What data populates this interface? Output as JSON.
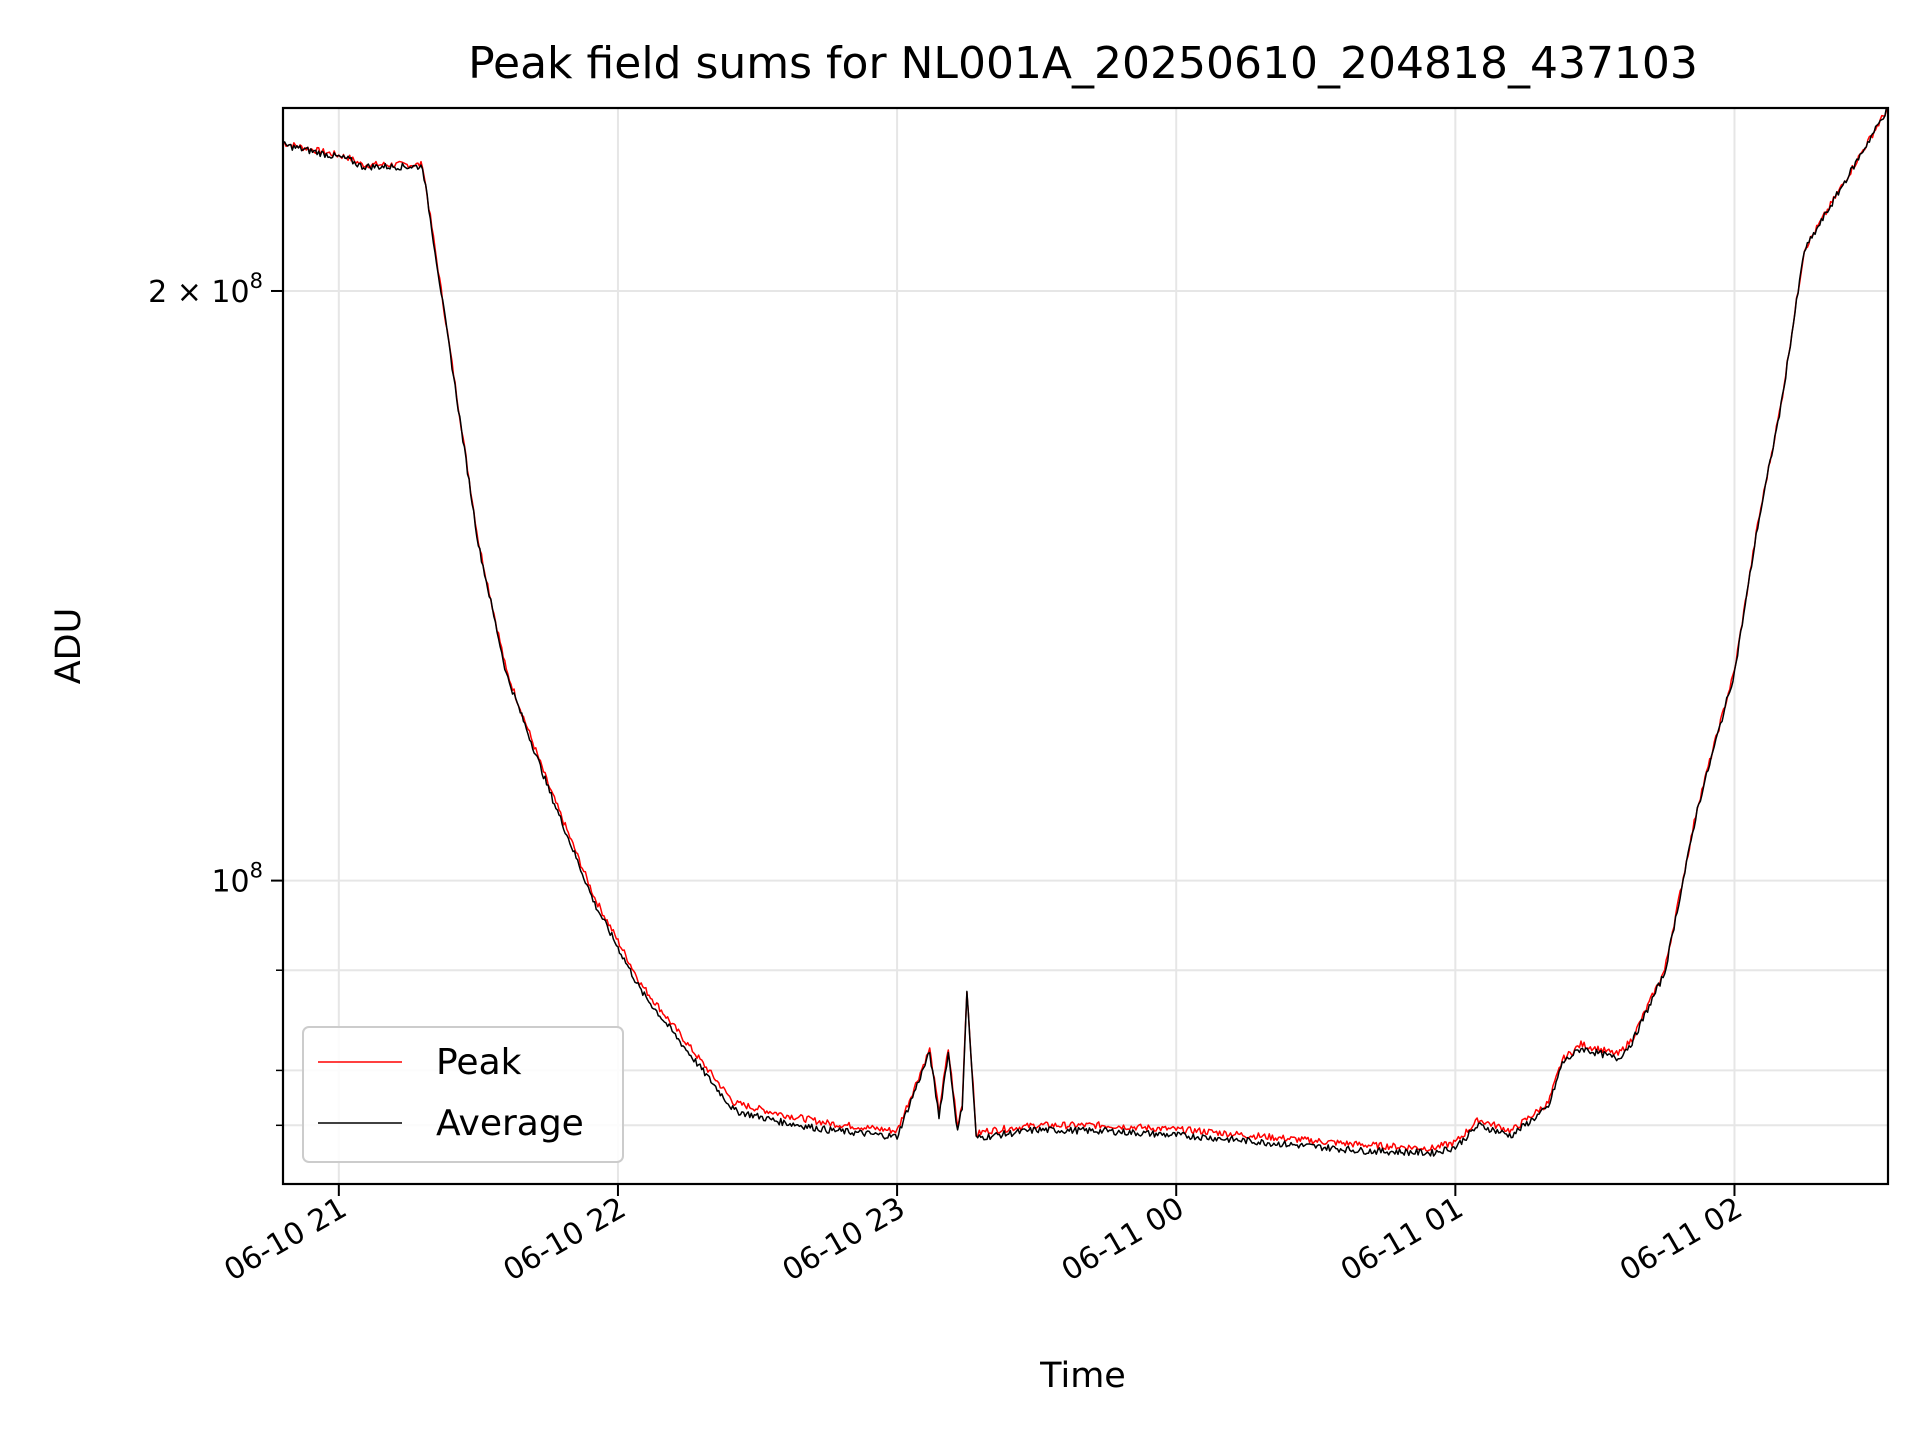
{
  "chart_data": {
    "type": "line",
    "title": "Peak field sums for NL001A_20250610_204818_437103",
    "xlabel": "Time",
    "ylabel": "ADU",
    "y_scale": "log",
    "grid": true,
    "legend_position": "lower-left",
    "xlim": [
      "06-10 20:48",
      "06-11 02:33"
    ],
    "ylim": [
      70000000,
      248000000
    ],
    "x_ticks": [
      "06-10 21",
      "06-10 22",
      "06-10 23",
      "06-11 00",
      "06-11 01",
      "06-11 02"
    ],
    "x_tick_times": [
      "06-10 21:00",
      "06-10 22:00",
      "06-10 23:00",
      "06-11 00:00",
      "06-11 01:00",
      "06-11 02:00"
    ],
    "y_tick_labels": [
      {
        "base": "10",
        "exp": "8",
        "value": 100000000,
        "prefix": ""
      },
      {
        "base": "10",
        "exp": "8",
        "value": 200000000,
        "prefix": "2 × "
      }
    ],
    "y_minor_ticks": [
      75000000,
      80000000,
      90000000
    ],
    "series": [
      {
        "name": "Peak",
        "color": "#ff0000",
        "x": [
          "06-10 20:48",
          "06-10 21:02",
          "06-10 21:05",
          "06-10 21:10",
          "06-10 21:18",
          "06-10 21:30",
          "06-10 21:36",
          "06-10 21:45",
          "06-10 21:55",
          "06-10 22:05",
          "06-10 22:15",
          "06-10 22:25",
          "06-10 22:35",
          "06-10 22:45",
          "06-10 23:00",
          "06-10 23:07",
          "06-10 23:09",
          "06-10 23:11",
          "06-10 23:13",
          "06-10 23:14",
          "06-10 23:15",
          "06-10 23:17",
          "06-10 23:19",
          "06-10 23:30",
          "06-10 23:45",
          "06-11 00:05",
          "06-11 00:25",
          "06-11 00:40",
          "06-11 00:55",
          "06-11 01:00",
          "06-11 01:05",
          "06-11 01:12",
          "06-11 01:20",
          "06-11 01:23",
          "06-11 01:27",
          "06-11 01:35",
          "06-11 01:38",
          "06-11 01:45",
          "06-11 01:52",
          "06-11 02:00",
          "06-11 02:05",
          "06-11 02:10",
          "06-11 02:15",
          "06-11 02:33"
        ],
        "values": [
          238000000,
          234000000,
          232000000,
          232000000,
          232000000,
          149000000,
          128000000,
          112000000,
          98000000,
          88500000,
          82500000,
          77000000,
          76000000,
          75200000,
          74500000,
          82000000,
          76200000,
          82000000,
          74800000,
          77000000,
          88000000,
          74200000,
          74500000,
          75000000,
          75000000,
          74500000,
          73800000,
          73300000,
          73000000,
          73500000,
          75500000,
          74500000,
          77000000,
          81000000,
          82500000,
          81500000,
          83000000,
          90000000,
          109000000,
          128000000,
          152000000,
          175000000,
          210000000,
          248000000
        ]
      },
      {
        "name": "Average",
        "color": "#000000",
        "x": [
          "06-10 20:48",
          "06-10 21:02",
          "06-10 21:05",
          "06-10 21:10",
          "06-10 21:18",
          "06-10 21:30",
          "06-10 21:36",
          "06-10 21:45",
          "06-10 21:55",
          "06-10 22:05",
          "06-10 22:15",
          "06-10 22:25",
          "06-10 22:35",
          "06-10 22:45",
          "06-10 23:00",
          "06-10 23:07",
          "06-10 23:09",
          "06-10 23:11",
          "06-10 23:13",
          "06-10 23:14",
          "06-10 23:15",
          "06-10 23:17",
          "06-10 23:19",
          "06-10 23:30",
          "06-10 23:45",
          "06-11 00:05",
          "06-11 00:25",
          "06-11 00:40",
          "06-11 00:55",
          "06-11 01:00",
          "06-11 01:05",
          "06-11 01:12",
          "06-11 01:20",
          "06-11 01:23",
          "06-11 01:27",
          "06-11 01:35",
          "06-11 01:38",
          "06-11 01:45",
          "06-11 01:52",
          "06-11 02:00",
          "06-11 02:05",
          "06-11 02:10",
          "06-11 02:15",
          "06-11 02:33"
        ],
        "values": [
          237500000,
          233500000,
          231500000,
          231500000,
          231500000,
          148500000,
          127500000,
          111500000,
          97300000,
          87800000,
          81800000,
          76300000,
          75300000,
          74600000,
          74000000,
          81700000,
          75800000,
          81700000,
          74400000,
          76700000,
          87800000,
          73900000,
          74000000,
          74600000,
          74500000,
          74000000,
          73300000,
          72800000,
          72600000,
          73100000,
          75000000,
          74100000,
          76600000,
          80700000,
          82100000,
          81100000,
          82700000,
          89700000,
          108700000,
          127700000,
          151700000,
          174700000,
          209700000,
          248000000
        ]
      }
    ]
  }
}
